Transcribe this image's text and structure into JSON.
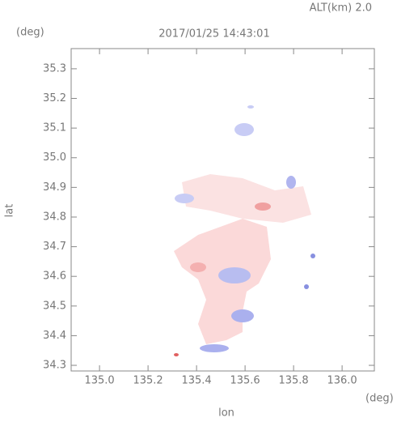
{
  "chart_data": {
    "type": "map",
    "title": "2017/01/25 14:43:01",
    "subtitle": "ALT(km) 2.0",
    "x_label": "lon",
    "y_label": "lat",
    "x_unit": "(deg)",
    "y_unit": "(deg)",
    "xlim": [
      134.883,
      136.133
    ],
    "ylim": [
      34.281,
      35.368
    ],
    "xticks": [
      {
        "value": 135.0,
        "label": "135.0"
      },
      135.2,
      135.4,
      135.6,
      135.8,
      {
        "value": 136.0,
        "label": "136.0"
      }
    ],
    "yticks": [
      34.3,
      34.4,
      34.5,
      34.6,
      34.7,
      34.8,
      34.9,
      {
        "value": 35.0,
        "label": "35.0"
      },
      35.1,
      35.2,
      35.3
    ]
  }
}
